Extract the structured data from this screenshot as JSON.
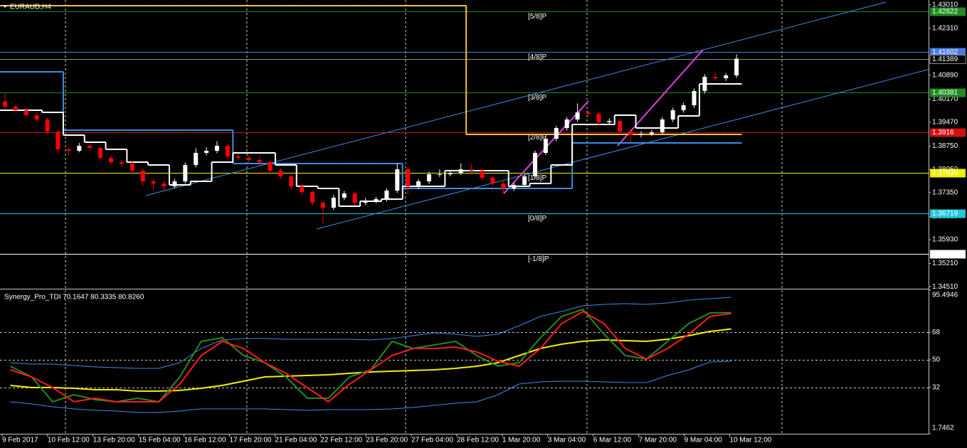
{
  "chart_data": [
    {
      "type": "candlestick",
      "title": "EURAUD,H4",
      "ylim": [
        1.3447,
        1.4316
      ],
      "yticks": [
        {
          "value": 1.4301,
          "label": "1.43010"
        },
        {
          "value": 1.4231,
          "label": "1.42310"
        },
        {
          "value": 1.4089,
          "label": "1.40890"
        },
        {
          "value": 1.4017,
          "label": "1.40170"
        },
        {
          "value": 1.3947,
          "label": "1.39470"
        },
        {
          "value": 1.3875,
          "label": "1.38750"
        },
        {
          "value": 1.3805,
          "label": "1.38050"
        },
        {
          "value": 1.3735,
          "label": "1.37350"
        },
        {
          "value": 1.3663,
          "label": "1.36630"
        },
        {
          "value": 1.3593,
          "label": "1.35930"
        },
        {
          "value": 1.3521,
          "label": "1.35210"
        },
        {
          "value": 1.3451,
          "label": "1.34510"
        }
      ],
      "x_labels": [
        "9 Feb 2017",
        "10 Feb 12:00",
        "13 Feb 20:00",
        "15 Feb 04:00",
        "16 Feb 12:00",
        "17 Feb 20:00",
        "21 Feb 04:00",
        "22 Feb 12:00",
        "23 Feb 20:00",
        "27 Feb 04:00",
        "28 Feb 12:00",
        "1 Mar 20:00",
        "3 Mar 04:00",
        "6 Mar 12:00",
        "7 Mar 20:00",
        "9 Mar 04:00",
        "10 Mar 12:00"
      ],
      "bull_color": "#ffffff",
      "bear_color": "#ff0000",
      "candles": [
        [
          1.401,
          1.4032,
          1.3988,
          1.39941
        ],
        [
          1.39941,
          1.4001,
          1.3976,
          1.39834
        ],
        [
          1.39834,
          1.399,
          1.3961,
          1.39683
        ],
        [
          1.39683,
          1.3976,
          1.3948,
          1.39555
        ],
        [
          1.39555,
          1.3962,
          1.3911,
          1.3919
        ],
        [
          1.3919,
          1.3925,
          1.3854,
          1.38653
        ],
        [
          1.38653,
          1.3872,
          1.3849,
          1.3861
        ],
        [
          1.3861,
          1.3885,
          1.3856,
          1.38761
        ],
        [
          1.38761,
          1.3883,
          1.3861,
          1.38696
        ],
        [
          1.38696,
          1.3876,
          1.3832,
          1.38396
        ],
        [
          1.38396,
          1.3845,
          1.3819,
          1.38267
        ],
        [
          1.38267,
          1.3833,
          1.3814,
          1.38224
        ],
        [
          1.38224,
          1.3829,
          1.3793,
          1.3801
        ],
        [
          1.3801,
          1.3807,
          1.3756,
          1.37688
        ],
        [
          1.37688,
          1.3776,
          1.3742,
          1.37623
        ],
        [
          1.37623,
          1.377,
          1.3738,
          1.37537
        ],
        [
          1.37537,
          1.3777,
          1.3748,
          1.37688
        ],
        [
          1.37688,
          1.3826,
          1.3762,
          1.38181
        ],
        [
          1.38181,
          1.3869,
          1.3811,
          1.38546
        ],
        [
          1.38546,
          1.3872,
          1.3847,
          1.3861
        ],
        [
          1.3861,
          1.389,
          1.3854,
          1.38761
        ],
        [
          1.38761,
          1.3883,
          1.3836,
          1.38439
        ],
        [
          1.38439,
          1.3851,
          1.3832,
          1.38396
        ],
        [
          1.38396,
          1.3846,
          1.3825,
          1.38331
        ],
        [
          1.38331,
          1.384,
          1.3819,
          1.38267
        ],
        [
          1.38267,
          1.3833,
          1.3793,
          1.3801
        ],
        [
          1.3801,
          1.3808,
          1.3776,
          1.37838
        ],
        [
          1.37838,
          1.379,
          1.3745,
          1.37537
        ],
        [
          1.37537,
          1.3761,
          1.3729,
          1.37366
        ],
        [
          1.37366,
          1.3743,
          1.3696,
          1.37044
        ],
        [
          1.37044,
          1.3711,
          1.3642,
          1.36894
        ],
        [
          1.36894,
          1.3728,
          1.3682,
          1.37194
        ],
        [
          1.37194,
          1.374,
          1.3712,
          1.37323
        ],
        [
          1.37323,
          1.3739,
          1.3696,
          1.37044
        ],
        [
          1.37044,
          1.3719,
          1.3697,
          1.37108
        ],
        [
          1.37108,
          1.3722,
          1.3703,
          1.37151
        ],
        [
          1.37151,
          1.3748,
          1.3708,
          1.37409
        ],
        [
          1.37409,
          1.3824,
          1.3734,
          1.38053
        ],
        [
          1.38053,
          1.3812,
          1.373,
          1.37537
        ],
        [
          1.37537,
          1.3776,
          1.3746,
          1.37688
        ],
        [
          1.37688,
          1.3798,
          1.3761,
          1.37902
        ],
        [
          1.37902,
          1.3805,
          1.3782,
          1.37902
        ],
        [
          1.37902,
          1.3802,
          1.3784,
          1.37945
        ],
        [
          1.37945,
          1.3823,
          1.3788,
          1.38053
        ],
        [
          1.38053,
          1.3819,
          1.3794,
          1.3801
        ],
        [
          1.3801,
          1.3808,
          1.3772,
          1.37795
        ],
        [
          1.37795,
          1.3786,
          1.3755,
          1.37623
        ],
        [
          1.37623,
          1.3769,
          1.3733,
          1.37473
        ],
        [
          1.37473,
          1.3765,
          1.374,
          1.3758
        ],
        [
          1.3758,
          1.3791,
          1.3751,
          1.37838
        ],
        [
          1.37838,
          1.3862,
          1.3777,
          1.38546
        ],
        [
          1.38546,
          1.3905,
          1.3848,
          1.38975
        ],
        [
          1.38975,
          1.3937,
          1.389,
          1.39297
        ],
        [
          1.39297,
          1.3963,
          1.3922,
          1.39555
        ],
        [
          1.39555,
          1.4004,
          1.3948,
          1.39769
        ],
        [
          1.39769,
          1.3985,
          1.3964,
          1.39726
        ],
        [
          1.39726,
          1.3979,
          1.3939,
          1.39469
        ],
        [
          1.39469,
          1.3959,
          1.394,
          1.39512
        ],
        [
          1.39512,
          1.3958,
          1.3911,
          1.3919
        ],
        [
          1.3919,
          1.3926,
          1.3884,
          1.39083
        ],
        [
          1.39083,
          1.392,
          1.3901,
          1.39126
        ],
        [
          1.39126,
          1.3924,
          1.3905,
          1.39168
        ],
        [
          1.39168,
          1.3963,
          1.391,
          1.39555
        ],
        [
          1.39555,
          1.3991,
          1.3948,
          1.39834
        ],
        [
          1.39834,
          1.4006,
          1.3976,
          1.39984
        ],
        [
          1.39984,
          1.4049,
          1.3991,
          1.40413
        ],
        [
          1.40413,
          1.4092,
          1.4034,
          1.40842
        ],
        [
          1.40842,
          1.4098,
          1.4072,
          1.40799
        ],
        [
          1.40799,
          1.4096,
          1.4072,
          1.40885
        ],
        [
          1.40885,
          1.4152,
          1.4081,
          1.41389
        ]
      ],
      "current_price": 1.41389,
      "current_color": "#8c8c8c",
      "levels": [
        {
          "label": "[5/8]P",
          "value": 1.42822,
          "color": "#1e8c1e"
        },
        {
          "label": "[4/8]P",
          "value": 1.41602,
          "color": "#4a78e6"
        },
        {
          "label": "[3/8]P",
          "value": 1.40381,
          "color": "#1e8c1e"
        },
        {
          "label": "[2/8]P",
          "value": 1.3916,
          "color": "#d01010"
        },
        {
          "label": "[1/8]P",
          "value": 1.37939,
          "color": "#f0f000"
        },
        {
          "label": "[0/8]P",
          "value": 1.36719,
          "color": "#20c8d8"
        },
        {
          "label": "[-1/8]P",
          "value": 1.35498,
          "color": "#ffffff"
        }
      ],
      "overlays": [
        {
          "color": "#f5c040",
          "values": [
            1.42988,
            1.42988,
            1.42988,
            1.42988,
            1.42988,
            1.42988,
            1.42988,
            1.42988,
            1.42988,
            1.42988,
            1.42988,
            1.42988,
            1.42988,
            1.42988,
            1.42988,
            1.42988,
            1.42988,
            1.42988,
            1.42988,
            1.42988,
            1.42988,
            1.42988,
            1.39104,
            1.39104,
            1.39104,
            1.39104,
            1.39104,
            1.39104,
            1.39104,
            1.39104,
            1.39104,
            1.39104,
            1.39104,
            1.39104,
            1.39104
          ]
        },
        {
          "color": "#3a8ee6",
          "values": [
            1.40994,
            1.40994,
            1.40994,
            1.39233,
            1.39233,
            1.39233,
            1.39233,
            1.39233,
            1.39233,
            1.39233,
            1.39233,
            1.38224,
            1.38224,
            1.38224,
            1.38224,
            1.38224,
            1.38224,
            1.38224,
            1.38224,
            1.37473,
            1.37473,
            1.37473,
            1.37473,
            1.37473,
            1.37473,
            1.37473,
            1.37473,
            1.38847,
            1.38847,
            1.38847,
            1.38847,
            1.38847,
            1.38847,
            1.38847,
            1.38847
          ]
        },
        {
          "color": "#ffffff",
          "values": [
            1.39834,
            1.39834,
            1.39769,
            1.39083,
            1.38868,
            1.38653,
            1.38267,
            1.38181,
            1.3758,
            1.37688,
            1.38267,
            1.38546,
            1.38546,
            1.38181,
            1.37537,
            1.37473,
            1.36937,
            1.37087,
            1.37151,
            1.37537,
            1.37537,
            1.3801,
            1.3801,
            1.3801,
            1.37537,
            1.37623,
            1.38181,
            1.39405,
            1.39405,
            1.39683,
            1.39297,
            1.39297,
            1.39662,
            1.40628,
            1.40628
          ]
        }
      ],
      "trendlines": [
        {
          "color": "#3a8ee6",
          "values": [
            1.37259,
            1.43096
          ]
        },
        {
          "color": "#3a8ee6",
          "values": [
            1.3625,
            1.41121
          ]
        },
        {
          "color": "#e040e0",
          "values": [
            1.37323,
            1.40113
          ]
        },
        {
          "color": "#e040e0",
          "values": [
            1.38761,
            1.41658
          ]
        }
      ]
    },
    {
      "type": "line",
      "title": "Synergy_Pro_TDI 70.1647 80.3335 80.8260",
      "ylim": [
        1.7462,
        95.4946
      ],
      "yticks": [
        95.4946,
        68,
        50,
        32,
        1.7462
      ],
      "series": [
        {
          "color": "#3a8ee6",
          "values": [
            48.16,
            47.23,
            47.23,
            46.3,
            45.37,
            44.91,
            44.44,
            44.44,
            48.16,
            57.44,
            63.01,
            63.94,
            63.94,
            63.47,
            63.47,
            63.47,
            63.47,
            63.01,
            63.94,
            65.79,
            67.65,
            66.72,
            65.33,
            66.72,
            72.29,
            78.32,
            81.57,
            85.28,
            86.21,
            86.68,
            86.21,
            87.14,
            89.0,
            89.93,
            90.85
          ]
        },
        {
          "color": "#3a8ee6",
          "values": [
            22.63,
            21.24,
            19.38,
            17.99,
            17.06,
            16.6,
            15.67,
            15.67,
            16.6,
            17.99,
            17.99,
            17.99,
            17.99,
            17.52,
            17.06,
            17.52,
            17.52,
            17.52,
            17.99,
            18.92,
            20.31,
            21.7,
            22.63,
            27.27,
            34.23,
            35.62,
            36.09,
            36.09,
            35.62,
            35.16,
            35.16,
            39.8,
            43.51,
            48.62,
            49.08
          ]
        },
        {
          "color": "#f0f000",
          "values": [
            33.3,
            31.91,
            31.91,
            31.45,
            30.52,
            30.52,
            29.59,
            29.59,
            30.05,
            31.45,
            33.3,
            36.09,
            38.87,
            39.34,
            39.8,
            40.27,
            41.19,
            42.12,
            42.59,
            43.05,
            43.51,
            44.44,
            45.84,
            48.16,
            52.8,
            57.44,
            60.22,
            62.08,
            63.01,
            62.54,
            62.08,
            63.47,
            65.79,
            68.58,
            70.1647
          ]
        },
        {
          "color": "#228b22",
          "values": [
            45.84,
            38.87,
            22.63,
            27.27,
            24.02,
            22.63,
            24.95,
            22.63,
            38.87,
            62.08,
            64.4,
            52.8,
            48.16,
            38.87,
            24.95,
            24.95,
            38.87,
            43.51,
            62.08,
            57.44,
            59.76,
            62.08,
            52.8,
            45.84,
            48.16,
            64.4,
            78.32,
            82.96,
            66.72,
            52.8,
            50.48,
            62.08,
            73.68,
            80.64,
            80.826
          ]
        },
        {
          "color": "#ff1a1a",
          "values": [
            43.51,
            38.87,
            31.91,
            22.63,
            24.95,
            22.63,
            22.63,
            22.63,
            34.23,
            52.8,
            62.08,
            57.44,
            48.16,
            41.19,
            31.91,
            22.63,
            34.23,
            43.51,
            52.8,
            57.44,
            57.44,
            58.36,
            55.12,
            49.08,
            45.84,
            57.44,
            73.68,
            81.57,
            73.68,
            57.44,
            50.48,
            57.44,
            66.72,
            78.32,
            80.3335
          ]
        }
      ]
    }
  ]
}
